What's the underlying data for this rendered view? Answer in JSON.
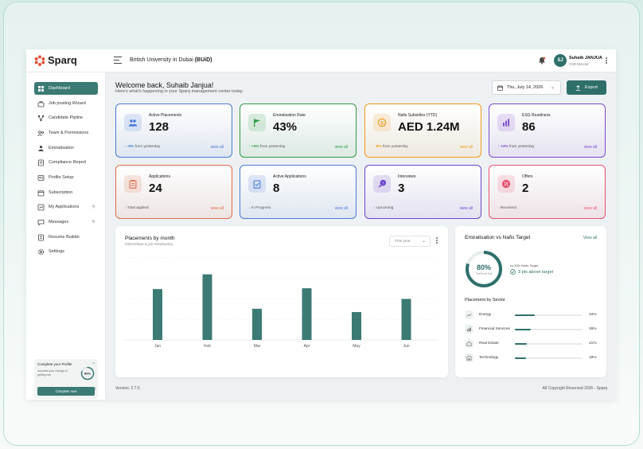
{
  "app": {
    "name": "Sparq",
    "university": "British University in Dubai",
    "university_code": "(BUiD)"
  },
  "user": {
    "initials": "SJ",
    "name": "Suhaib JANJUA",
    "role": "CSR Director"
  },
  "sidebar": {
    "items": [
      {
        "label": "Dashboard",
        "icon": "dashboard-icon"
      },
      {
        "label": "Job posting Wizard",
        "icon": "briefcase-icon"
      },
      {
        "label": "Candidate Pipline",
        "icon": "pipeline-icon"
      },
      {
        "label": "Team & Permissions",
        "icon": "team-icon"
      },
      {
        "label": "Emiratisation",
        "icon": "users-icon"
      },
      {
        "label": "Compliance Report",
        "icon": "report-icon"
      },
      {
        "label": "Profile Setup",
        "icon": "profile-icon"
      },
      {
        "label": "Subscription",
        "icon": "calendar-icon"
      },
      {
        "label": "My Applications",
        "icon": "applications-icon",
        "badge": "2"
      },
      {
        "label": "Messages",
        "icon": "message-icon",
        "badge": "5"
      },
      {
        "label": "Resume Builder",
        "icon": "resume-icon"
      },
      {
        "label": "Settings",
        "icon": "gear-icon"
      }
    ],
    "profile_card": {
      "title": "Complete your Profile",
      "text": "Increase your change of getting hire",
      "percent": "80%",
      "percent_value": 0.8,
      "button": "Complete now"
    }
  },
  "header": {
    "welcome": "Welcome back, Suhaib Janjua!",
    "subtitle": "Here's what's happening in your Sparq management center today.",
    "date": "Thu, July 14, 2026",
    "export": "Export"
  },
  "cards": [
    {
      "label": "Active Placements",
      "value": "128",
      "delta": "-5%",
      "delta_text": " from yesterday",
      "view": "view all",
      "color": "#4a79d8",
      "icon": "people-icon"
    },
    {
      "label": "Emiratisation Rate",
      "value": "43%",
      "delta": "+4%",
      "delta_text": " from yesterday",
      "view": "view all",
      "color": "#2e9a46",
      "icon": "flag-icon"
    },
    {
      "label": "Nafis Subsidies (YTD)",
      "value": "AED 1.24M",
      "delta": "8%",
      "delta_text": " from yesterday",
      "view": "view all",
      "color": "#ee9a1e",
      "icon": "coin-icon"
    },
    {
      "label": "ESG Readiness",
      "value": "86",
      "delta": "+4%",
      "delta_text": " from yesterday",
      "view": "view all",
      "color": "#7b49cf",
      "icon": "chart-icon"
    },
    {
      "label": "Applications",
      "value": "24",
      "delta": "",
      "delta_text": "Total applied",
      "view": "view all",
      "color": "#e06a4a",
      "icon": "clipboard-icon"
    },
    {
      "label": "Active Applications",
      "value": "8",
      "delta": "",
      "delta_text": "In Progress",
      "view": "view all",
      "color": "#4a79d8",
      "icon": "clipboard-check-icon"
    },
    {
      "label": "Interviews",
      "value": "3",
      "delta": "",
      "delta_text": "Upcoming",
      "view": "view all",
      "color": "#6b44c9",
      "icon": "chat-icon"
    },
    {
      "label": "Offers",
      "value": "2",
      "delta": "",
      "delta_text": "Received",
      "view": "view all",
      "color": "#e8506f",
      "icon": "percent-icon"
    }
  ],
  "placements": {
    "title": "Placements by month",
    "subtitle": "Internships & job shadowing",
    "period": "This year"
  },
  "chart_data": {
    "type": "bar",
    "categories": [
      "Jan",
      "Feb",
      "Mar",
      "Apr",
      "May",
      "Jun"
    ],
    "values": [
      62,
      80,
      38,
      63,
      34,
      50
    ],
    "ylim": [
      0,
      100
    ],
    "color": "#3c7a74",
    "grid": true
  },
  "emiratisation": {
    "title": "Emiratisation vs Nafis Target",
    "view_all": "View all",
    "percent": "80%",
    "percent_value": 0.8,
    "ring_label": "Total Emirati Staff",
    "target_text": "vs 30% Nafis Target",
    "above_text": "3 pts above target"
  },
  "sectors": {
    "title": "Placement by Sector",
    "rows": [
      {
        "name": "Energy",
        "pct": "34%",
        "value": 0.34,
        "icon": "trend-icon"
      },
      {
        "name": "Financial Services",
        "pct": "28%",
        "value": 0.28,
        "icon": "bars-icon"
      },
      {
        "name": "Real Estate",
        "pct": "21%",
        "value": 0.21,
        "icon": "house-icon"
      },
      {
        "name": "Technology",
        "pct": "19%",
        "value": 0.19,
        "icon": "building-icon"
      }
    ]
  },
  "footer": {
    "version": "Version: 2.7.0",
    "copyright": "All Copyright Reserved 2026 - Sparq"
  }
}
